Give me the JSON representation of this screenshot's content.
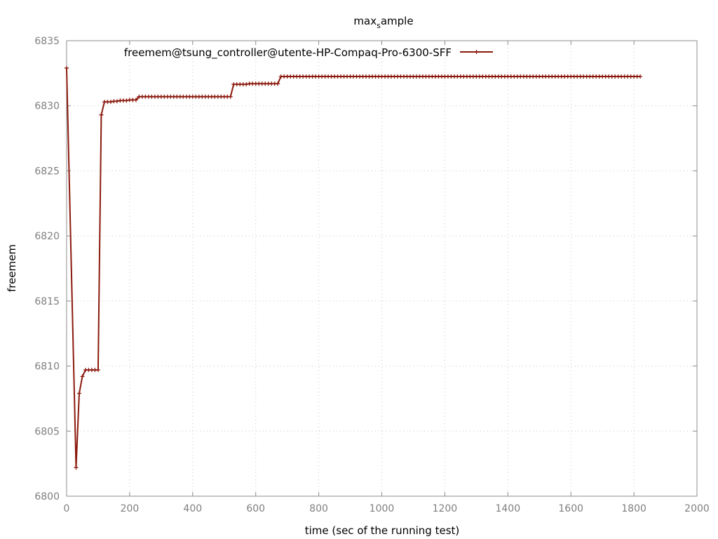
{
  "chart_data": {
    "type": "line",
    "title": "max",
    "title_subscript": "s",
    "title_rest": "ample",
    "xlabel": "time (sec of the running test)",
    "ylabel": "freemem",
    "xlim": [
      0,
      2000
    ],
    "ylim": [
      6800,
      6835
    ],
    "xticks": [
      0,
      200,
      400,
      600,
      800,
      1000,
      1200,
      1400,
      1600,
      1800,
      2000
    ],
    "yticks": [
      6800,
      6805,
      6810,
      6815,
      6820,
      6825,
      6830,
      6835
    ],
    "grid": true,
    "legend_position": "top",
    "series": [
      {
        "name": "freemem@tsung_controller@utente-HP-Compaq-Pro-6300-SFF",
        "color": "#8b1a0e",
        "marker": "plus",
        "points": [
          [
            0,
            6832.9
          ],
          [
            30,
            6802.2
          ],
          [
            40,
            6807.9
          ],
          [
            50,
            6809.2
          ],
          [
            60,
            6809.7
          ],
          [
            70,
            6809.7
          ],
          [
            80,
            6809.7
          ],
          [
            90,
            6809.7
          ],
          [
            100,
            6809.7
          ],
          [
            110,
            6829.3
          ],
          [
            120,
            6830.3
          ],
          [
            130,
            6830.3
          ],
          [
            140,
            6830.3
          ],
          [
            150,
            6830.35
          ],
          [
            160,
            6830.35
          ],
          [
            170,
            6830.4
          ],
          [
            180,
            6830.4
          ],
          [
            190,
            6830.4
          ],
          [
            200,
            6830.45
          ],
          [
            210,
            6830.45
          ],
          [
            220,
            6830.45
          ],
          [
            230,
            6830.7
          ],
          [
            240,
            6830.7
          ],
          [
            250,
            6830.7
          ],
          [
            260,
            6830.7
          ],
          [
            270,
            6830.7
          ],
          [
            280,
            6830.7
          ],
          [
            290,
            6830.7
          ],
          [
            300,
            6830.7
          ],
          [
            310,
            6830.7
          ],
          [
            320,
            6830.7
          ],
          [
            330,
            6830.7
          ],
          [
            340,
            6830.7
          ],
          [
            350,
            6830.7
          ],
          [
            360,
            6830.7
          ],
          [
            370,
            6830.7
          ],
          [
            380,
            6830.7
          ],
          [
            390,
            6830.7
          ],
          [
            400,
            6830.7
          ],
          [
            410,
            6830.7
          ],
          [
            420,
            6830.7
          ],
          [
            430,
            6830.7
          ],
          [
            440,
            6830.7
          ],
          [
            450,
            6830.7
          ],
          [
            460,
            6830.7
          ],
          [
            470,
            6830.7
          ],
          [
            480,
            6830.7
          ],
          [
            490,
            6830.7
          ],
          [
            500,
            6830.7
          ],
          [
            510,
            6830.7
          ],
          [
            520,
            6830.7
          ],
          [
            530,
            6831.65
          ],
          [
            540,
            6831.65
          ],
          [
            550,
            6831.65
          ],
          [
            560,
            6831.65
          ],
          [
            570,
            6831.65
          ],
          [
            580,
            6831.7
          ],
          [
            590,
            6831.7
          ],
          [
            600,
            6831.7
          ],
          [
            610,
            6831.7
          ],
          [
            620,
            6831.7
          ],
          [
            630,
            6831.7
          ],
          [
            640,
            6831.7
          ],
          [
            650,
            6831.7
          ],
          [
            660,
            6831.7
          ],
          [
            670,
            6831.7
          ],
          [
            680,
            6832.25
          ],
          [
            690,
            6832.25
          ],
          [
            700,
            6832.25
          ],
          [
            710,
            6832.25
          ],
          [
            720,
            6832.25
          ],
          [
            730,
            6832.25
          ],
          [
            740,
            6832.25
          ],
          [
            750,
            6832.25
          ],
          [
            760,
            6832.25
          ],
          [
            770,
            6832.25
          ],
          [
            780,
            6832.25
          ],
          [
            790,
            6832.25
          ],
          [
            800,
            6832.25
          ],
          [
            810,
            6832.25
          ],
          [
            820,
            6832.25
          ],
          [
            830,
            6832.25
          ],
          [
            840,
            6832.25
          ],
          [
            850,
            6832.25
          ],
          [
            860,
            6832.25
          ],
          [
            870,
            6832.25
          ],
          [
            880,
            6832.25
          ],
          [
            890,
            6832.25
          ],
          [
            900,
            6832.25
          ],
          [
            910,
            6832.25
          ],
          [
            920,
            6832.25
          ],
          [
            930,
            6832.25
          ],
          [
            940,
            6832.25
          ],
          [
            950,
            6832.25
          ],
          [
            960,
            6832.25
          ],
          [
            970,
            6832.25
          ],
          [
            980,
            6832.25
          ],
          [
            990,
            6832.25
          ],
          [
            1000,
            6832.25
          ],
          [
            1010,
            6832.25
          ],
          [
            1020,
            6832.25
          ],
          [
            1030,
            6832.25
          ],
          [
            1040,
            6832.25
          ],
          [
            1050,
            6832.25
          ],
          [
            1060,
            6832.25
          ],
          [
            1070,
            6832.25
          ],
          [
            1080,
            6832.25
          ],
          [
            1090,
            6832.25
          ],
          [
            1100,
            6832.25
          ],
          [
            1110,
            6832.25
          ],
          [
            1120,
            6832.25
          ],
          [
            1130,
            6832.25
          ],
          [
            1140,
            6832.25
          ],
          [
            1150,
            6832.25
          ],
          [
            1160,
            6832.25
          ],
          [
            1170,
            6832.25
          ],
          [
            1180,
            6832.25
          ],
          [
            1190,
            6832.25
          ],
          [
            1200,
            6832.25
          ],
          [
            1210,
            6832.25
          ],
          [
            1220,
            6832.25
          ],
          [
            1230,
            6832.25
          ],
          [
            1240,
            6832.25
          ],
          [
            1250,
            6832.25
          ],
          [
            1260,
            6832.25
          ],
          [
            1270,
            6832.25
          ],
          [
            1280,
            6832.25
          ],
          [
            1290,
            6832.25
          ],
          [
            1300,
            6832.25
          ],
          [
            1310,
            6832.25
          ],
          [
            1320,
            6832.25
          ],
          [
            1330,
            6832.25
          ],
          [
            1340,
            6832.25
          ],
          [
            1350,
            6832.25
          ],
          [
            1360,
            6832.25
          ],
          [
            1370,
            6832.25
          ],
          [
            1380,
            6832.25
          ],
          [
            1390,
            6832.25
          ],
          [
            1400,
            6832.25
          ],
          [
            1410,
            6832.25
          ],
          [
            1420,
            6832.25
          ],
          [
            1430,
            6832.25
          ],
          [
            1440,
            6832.25
          ],
          [
            1450,
            6832.25
          ],
          [
            1460,
            6832.25
          ],
          [
            1470,
            6832.25
          ],
          [
            1480,
            6832.25
          ],
          [
            1490,
            6832.25
          ],
          [
            1500,
            6832.25
          ],
          [
            1510,
            6832.25
          ],
          [
            1520,
            6832.25
          ],
          [
            1530,
            6832.25
          ],
          [
            1540,
            6832.25
          ],
          [
            1550,
            6832.25
          ],
          [
            1560,
            6832.25
          ],
          [
            1570,
            6832.25
          ],
          [
            1580,
            6832.25
          ],
          [
            1590,
            6832.25
          ],
          [
            1600,
            6832.25
          ],
          [
            1610,
            6832.25
          ],
          [
            1620,
            6832.25
          ],
          [
            1630,
            6832.25
          ],
          [
            1640,
            6832.25
          ],
          [
            1650,
            6832.25
          ],
          [
            1660,
            6832.25
          ],
          [
            1670,
            6832.25
          ],
          [
            1680,
            6832.25
          ],
          [
            1690,
            6832.25
          ],
          [
            1700,
            6832.25
          ],
          [
            1710,
            6832.25
          ],
          [
            1720,
            6832.25
          ],
          [
            1730,
            6832.25
          ],
          [
            1740,
            6832.25
          ],
          [
            1750,
            6832.25
          ],
          [
            1760,
            6832.25
          ],
          [
            1770,
            6832.25
          ],
          [
            1780,
            6832.25
          ],
          [
            1790,
            6832.25
          ],
          [
            1800,
            6832.25
          ],
          [
            1810,
            6832.25
          ],
          [
            1820,
            6832.25
          ]
        ]
      }
    ]
  }
}
